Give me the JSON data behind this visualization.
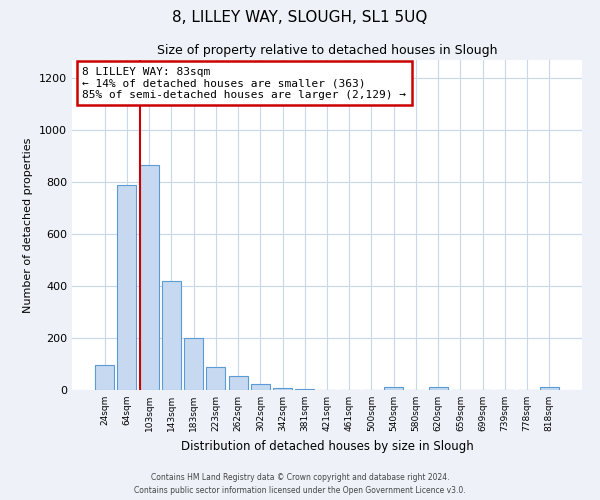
{
  "title": "8, LILLEY WAY, SLOUGH, SL1 5UQ",
  "subtitle": "Size of property relative to detached houses in Slough",
  "xlabel": "Distribution of detached houses by size in Slough",
  "ylabel": "Number of detached properties",
  "bar_labels": [
    "24sqm",
    "64sqm",
    "103sqm",
    "143sqm",
    "183sqm",
    "223sqm",
    "262sqm",
    "302sqm",
    "342sqm",
    "381sqm",
    "421sqm",
    "461sqm",
    "500sqm",
    "540sqm",
    "580sqm",
    "620sqm",
    "659sqm",
    "699sqm",
    "739sqm",
    "778sqm",
    "818sqm"
  ],
  "bar_values": [
    95,
    790,
    865,
    420,
    200,
    88,
    55,
    22,
    8,
    3,
    0,
    0,
    0,
    10,
    0,
    10,
    0,
    0,
    0,
    0,
    10
  ],
  "bar_color": "#c6d9f0",
  "bar_edge_color": "#5b9bd5",
  "annotation_title": "8 LILLEY WAY: 83sqm",
  "annotation_line1": "← 14% of detached houses are smaller (363)",
  "annotation_line2": "85% of semi-detached houses are larger (2,129) →",
  "annotation_box_color": "#ffffff",
  "annotation_box_edge": "#cc0000",
  "ylim": [
    0,
    1270
  ],
  "yticks": [
    0,
    200,
    400,
    600,
    800,
    1000,
    1200
  ],
  "vline_color": "#cc0000",
  "vline_x": 1.57,
  "footer_line1": "Contains HM Land Registry data © Crown copyright and database right 2024.",
  "footer_line2": "Contains public sector information licensed under the Open Government Licence v3.0.",
  "bg_color": "#eef2f8",
  "plot_bg_color": "#ffffff",
  "grid_color": "#c8d8ea"
}
